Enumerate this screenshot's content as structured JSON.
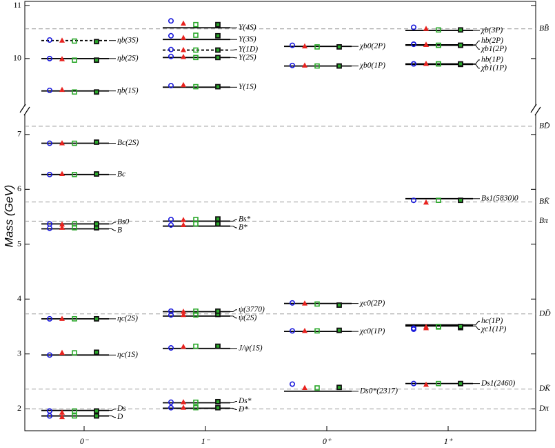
{
  "chart_data": {
    "type": "levels",
    "ylabel": "Mass (GeV)",
    "categories": [
      "0⁻",
      "1⁻",
      "0⁺",
      "1⁺"
    ],
    "ylim": [
      1.6,
      7.35
    ],
    "yticks": [
      2,
      3,
      4,
      5,
      6,
      7
    ],
    "upper_ylim": [
      9.1,
      11
    ],
    "upper_yticks": [
      10,
      11
    ],
    "series": [
      {
        "color": "#1a1adb",
        "marker": "circle"
      },
      {
        "color": "#e8231f",
        "marker": "triangle"
      },
      {
        "color": "#2aa82a",
        "marker": "square"
      },
      {
        "color": "#2aa82a",
        "marker": "dark-square"
      }
    ],
    "levels": [
      {
        "category": 0,
        "mass": 1.87,
        "label": "D",
        "dashed": false,
        "predictions": [
          1.87,
          1.85,
          1.87,
          1.87
        ]
      },
      {
        "category": 0,
        "mass": 1.97,
        "label": "Ds",
        "dashed": false,
        "predictions": [
          1.96,
          1.93,
          1.96,
          1.96
        ]
      },
      {
        "category": 0,
        "mass": 2.98,
        "label": "ηc(1S)",
        "dashed": false,
        "predictions": [
          2.98,
          3.02,
          3.02,
          3.03
        ]
      },
      {
        "category": 0,
        "mass": 3.64,
        "label": "ηc(2S)",
        "dashed": false,
        "predictions": [
          3.64,
          3.64,
          3.64,
          3.64
        ]
      },
      {
        "category": 0,
        "mass": 5.28,
        "label": "B",
        "dashed": false,
        "predictions": [
          5.29,
          5.3,
          5.3,
          5.3
        ]
      },
      {
        "category": 0,
        "mass": 5.37,
        "label": "Bs0",
        "dashed": false,
        "predictions": [
          5.37,
          5.36,
          5.37,
          5.37
        ]
      },
      {
        "category": 0,
        "mass": 6.27,
        "label": "Bc",
        "dashed": false,
        "predictions": [
          6.27,
          6.28,
          6.27,
          6.28
        ]
      },
      {
        "category": 0,
        "mass": 6.84,
        "label": "Bc(2S)",
        "dashed": false,
        "predictions": [
          6.84,
          6.84,
          6.84,
          6.86
        ]
      },
      {
        "category": 0,
        "mass": 9.39,
        "label": "ηb(1S)",
        "dashed": false,
        "predictions": [
          9.4,
          9.41,
          9.37,
          9.37
        ]
      },
      {
        "category": 0,
        "mass": 10.0,
        "label": "ηb(2S)",
        "dashed": false,
        "predictions": [
          10.0,
          9.99,
          9.97,
          9.97
        ]
      },
      {
        "category": 0,
        "mass": 10.34,
        "label": "ηb(3S)",
        "dashed": true,
        "predictions": [
          10.35,
          10.34,
          10.33,
          10.32
        ]
      },
      {
        "category": 1,
        "mass": 2.01,
        "label": "D*",
        "dashed": false,
        "predictions": [
          2.02,
          2.02,
          2.02,
          2.02
        ]
      },
      {
        "category": 1,
        "mass": 2.11,
        "label": "Ds*",
        "dashed": false,
        "predictions": [
          2.12,
          2.12,
          2.12,
          2.13
        ]
      },
      {
        "category": 1,
        "mass": 3.1,
        "label": "J/ψ(1S)",
        "dashed": false,
        "predictions": [
          3.11,
          3.13,
          3.14,
          3.14
        ]
      },
      {
        "category": 1,
        "mass": 3.69,
        "label": "ψ(2S)",
        "dashed": false,
        "predictions": [
          3.71,
          3.71,
          3.71,
          3.72
        ]
      },
      {
        "category": 1,
        "mass": 3.77,
        "label": "ψ(3770)",
        "dashed": false,
        "predictions": [
          3.78,
          3.77,
          3.78,
          3.78
        ]
      },
      {
        "category": 1,
        "mass": 5.33,
        "label": "B*",
        "dashed": false,
        "predictions": [
          5.35,
          5.35,
          5.37,
          5.37
        ]
      },
      {
        "category": 1,
        "mass": 5.42,
        "label": "Bs*",
        "dashed": false,
        "predictions": [
          5.45,
          5.44,
          5.45,
          5.46
        ]
      },
      {
        "category": 1,
        "mass": 9.46,
        "label": "Υ(1S)",
        "dashed": false,
        "predictions": [
          9.49,
          9.5,
          9.47,
          9.47
        ]
      },
      {
        "category": 1,
        "mass": 10.02,
        "label": "Υ(2S)",
        "dashed": false,
        "predictions": [
          10.04,
          10.03,
          10.02,
          10.02
        ]
      },
      {
        "category": 1,
        "mass": 10.16,
        "label": "Υ(1D)",
        "dashed": true,
        "predictions": [
          10.17,
          10.16,
          10.16,
          10.16
        ]
      },
      {
        "category": 1,
        "mass": 10.36,
        "label": "Υ(3S)",
        "dashed": false,
        "predictions": [
          10.43,
          10.39,
          10.44,
          10.43
        ]
      },
      {
        "category": 1,
        "mass": 10.58,
        "label": "Υ(4S)",
        "dashed": false,
        "predictions": [
          10.71,
          10.66,
          10.64,
          10.64
        ]
      },
      {
        "category": 2,
        "mass": 2.32,
        "label": "Ds0*(2317)",
        "dashed": false,
        "predictions": [
          2.45,
          2.38,
          2.38,
          2.39
        ]
      },
      {
        "category": 2,
        "mass": 3.41,
        "label": "χc0(1P)",
        "dashed": false,
        "predictions": [
          3.42,
          3.42,
          3.42,
          3.43
        ]
      },
      {
        "category": 2,
        "mass": 3.92,
        "label": "χc0(2P)",
        "dashed": false,
        "predictions": [
          3.93,
          3.92,
          3.91,
          3.89
        ]
      },
      {
        "category": 2,
        "mass": 9.86,
        "label": "χb0(1P)",
        "dashed": false,
        "predictions": [
          9.87,
          9.87,
          9.86,
          9.86
        ]
      },
      {
        "category": 2,
        "mass": 10.23,
        "label": "χb0(2P)",
        "dashed": false,
        "predictions": [
          10.25,
          10.23,
          10.22,
          10.22
        ]
      },
      {
        "category": 3,
        "mass": 2.46,
        "label": "Ds1(2460)",
        "dashed": false,
        "predictions": [
          2.46,
          2.44,
          2.46,
          2.46
        ]
      },
      {
        "category": 3,
        "mass": 3.51,
        "label": "χc1(1P)",
        "dashed": false,
        "predictions": [
          3.45,
          3.47,
          3.49,
          3.48
        ]
      },
      {
        "category": 3,
        "mass": 3.53,
        "label": "hc(1P)",
        "dashed": false,
        "predictions": [
          3.47,
          3.49,
          3.5,
          3.5
        ]
      },
      {
        "category": 3,
        "mass": 5.83,
        "label": "Bs1(5830)0",
        "dashed": false,
        "predictions": [
          5.8,
          5.76,
          5.8,
          5.8
        ]
      },
      {
        "category": 3,
        "mass": 9.89,
        "label": "χb1(1P)",
        "dashed": false,
        "predictions": [
          9.9,
          9.9,
          9.9,
          9.89
        ]
      },
      {
        "category": 3,
        "mass": 9.9,
        "label": "hb(1P)",
        "dashed": false,
        "predictions": [
          9.9,
          9.9,
          9.9,
          9.9
        ]
      },
      {
        "category": 3,
        "mass": 10.25,
        "label": "χb1(2P)",
        "dashed": false,
        "predictions": [
          10.27,
          10.26,
          10.25,
          10.25
        ]
      },
      {
        "category": 3,
        "mass": 10.26,
        "label": "hb(2P)",
        "dashed": false,
        "predictions": [
          10.27,
          10.26,
          10.25,
          10.25
        ]
      },
      {
        "category": 3,
        "mass": 10.53,
        "label": "χb(3P)",
        "dashed": false,
        "predictions": [
          10.59,
          10.56,
          10.54,
          10.54
        ]
      }
    ],
    "thresholds": [
      {
        "label": "BB̄",
        "value": 10.56
      },
      {
        "label": "BD̄",
        "value": 7.15
      },
      {
        "label": "BK̄",
        "value": 5.77
      },
      {
        "label": "Bπ",
        "value": 5.42
      },
      {
        "label": "DD̄",
        "value": 3.73
      },
      {
        "label": "DK̄",
        "value": 2.36
      },
      {
        "label": "Dπ",
        "value": 2.0
      }
    ]
  }
}
